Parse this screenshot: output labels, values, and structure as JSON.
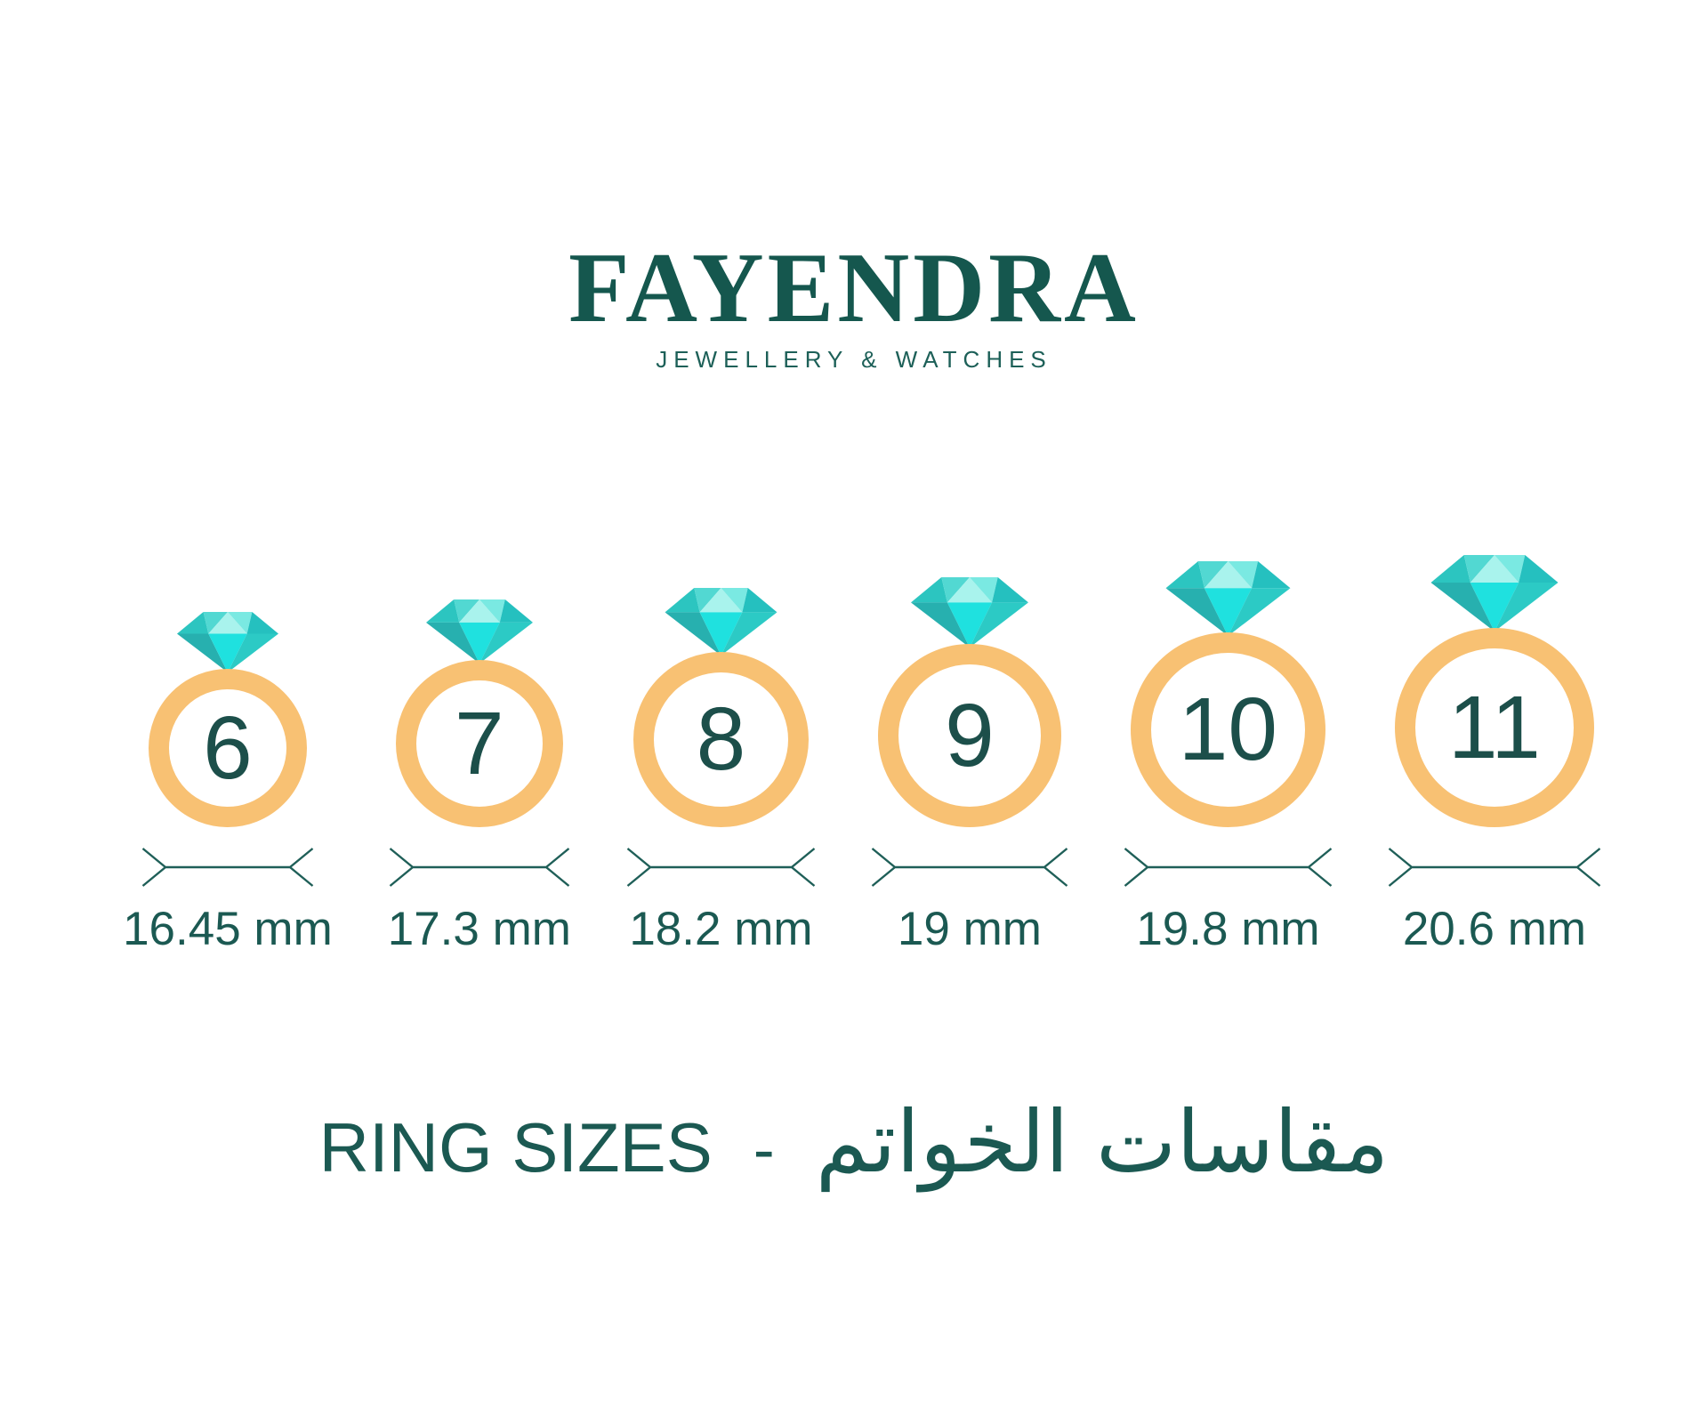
{
  "brand": {
    "name": "FAYENDRA",
    "tagline": "JEWELLERY & WATCHES"
  },
  "rings": [
    {
      "size": "6",
      "diameter": "16.45 mm"
    },
    {
      "size": "7",
      "diameter": "17.3 mm"
    },
    {
      "size": "8",
      "diameter": "18.2 mm"
    },
    {
      "size": "9",
      "diameter": "19 mm"
    },
    {
      "size": "10",
      "diameter": "19.8 mm"
    },
    {
      "size": "11",
      "diameter": "20.6 mm"
    }
  ],
  "title": {
    "en": "RING SIZES",
    "separator": "-",
    "ar": "مقاسات الخواتم"
  },
  "colors": {
    "text_teal": "#1b5952",
    "number_teal": "#1c4f4a",
    "band_orange": "#f8c173",
    "arrow_teal": "#1f5f58",
    "diamond": {
      "crown_left": "#2cc5c0",
      "crown_midleft": "#52d8d2",
      "crown_center": "#a9f3ed",
      "crown_midright": "#7ae9e2",
      "crown_right": "#25c0bf",
      "pavilion_left": "#27b0af",
      "pavilion_center": "#1fe1df",
      "pavilion_right": "#2ccac5"
    }
  }
}
